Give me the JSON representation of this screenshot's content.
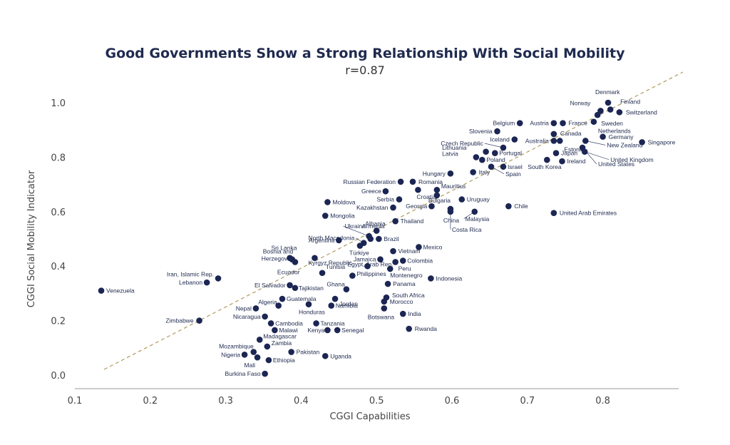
{
  "chart_data": {
    "type": "scatter",
    "title": "Good Governments Show a Strong Relationship With Social Mobility",
    "subtitle": "r=0.87",
    "xlabel": "CGGI Capabilities",
    "ylabel": "CGGI Social Mobility Indicator",
    "xlim": [
      0.1,
      0.9
    ],
    "ylim": [
      0.0,
      1.0
    ],
    "x_ticks": [
      "0.1",
      "0.2",
      "0.3",
      "0.4",
      "0.5",
      "0.6",
      "0.7",
      "0.8"
    ],
    "y_ticks": [
      "0.0",
      "0.2",
      "0.4",
      "0.6",
      "0.8",
      "1.0"
    ],
    "grid": false,
    "trendline": "dashed",
    "colors": {
      "points": "#1c2654",
      "trendline": "#b09a5a",
      "title": "#1f2a4f"
    },
    "points": [
      {
        "label": "Denmark",
        "x": 0.807,
        "y": 1.0
      },
      {
        "label": "Finland",
        "x": 0.81,
        "y": 0.975
      },
      {
        "label": "Norway",
        "x": 0.797,
        "y": 0.97
      },
      {
        "label": "Switzerland",
        "x": 0.822,
        "y": 0.965
      },
      {
        "label": "Sweden",
        "x": 0.793,
        "y": 0.955
      },
      {
        "label": "Netherlands",
        "x": 0.788,
        "y": 0.93
      },
      {
        "label": "Germany",
        "x": 0.8,
        "y": 0.875
      },
      {
        "label": "Singapore",
        "x": 0.852,
        "y": 0.855
      },
      {
        "label": "New Zealand",
        "x": 0.777,
        "y": 0.86
      },
      {
        "label": "United Kingdom",
        "x": 0.776,
        "y": 0.82
      },
      {
        "label": "United States",
        "x": 0.773,
        "y": 0.835
      },
      {
        "label": "Austria",
        "x": 0.735,
        "y": 0.925
      },
      {
        "label": "France",
        "x": 0.747,
        "y": 0.925
      },
      {
        "label": "Canada",
        "x": 0.735,
        "y": 0.885
      },
      {
        "label": "Australia",
        "x": 0.735,
        "y": 0.86
      },
      {
        "label": "Estonia",
        "x": 0.743,
        "y": 0.86
      },
      {
        "label": "Japan",
        "x": 0.738,
        "y": 0.815
      },
      {
        "label": "Ireland",
        "x": 0.746,
        "y": 0.785
      },
      {
        "label": "South Korea",
        "x": 0.726,
        "y": 0.79
      },
      {
        "label": "Belgium",
        "x": 0.69,
        "y": 0.925
      },
      {
        "label": "Slovenia",
        "x": 0.66,
        "y": 0.895
      },
      {
        "label": "Iceland",
        "x": 0.683,
        "y": 0.865
      },
      {
        "label": "Czech Republic",
        "x": 0.668,
        "y": 0.835
      },
      {
        "label": "Lithuania",
        "x": 0.645,
        "y": 0.82
      },
      {
        "label": "Portugal",
        "x": 0.657,
        "y": 0.815
      },
      {
        "label": "Latvia",
        "x": 0.632,
        "y": 0.8
      },
      {
        "label": "Poland",
        "x": 0.64,
        "y": 0.79
      },
      {
        "label": "Israel",
        "x": 0.668,
        "y": 0.765
      },
      {
        "label": "Spain",
        "x": 0.652,
        "y": 0.765
      },
      {
        "label": "Italy",
        "x": 0.628,
        "y": 0.745
      },
      {
        "label": "Hungary",
        "x": 0.598,
        "y": 0.74
      },
      {
        "label": "Russian Federation",
        "x": 0.532,
        "y": 0.71
      },
      {
        "label": "Romania",
        "x": 0.548,
        "y": 0.71
      },
      {
        "label": "Mauritius",
        "x": 0.58,
        "y": 0.68
      },
      {
        "label": "Greece",
        "x": 0.512,
        "y": 0.675
      },
      {
        "label": "Croatia",
        "x": 0.555,
        "y": 0.68
      },
      {
        "label": "Serbia",
        "x": 0.53,
        "y": 0.645
      },
      {
        "label": "Bulgaria",
        "x": 0.58,
        "y": 0.66
      },
      {
        "label": "Uruguay",
        "x": 0.613,
        "y": 0.645
      },
      {
        "label": "Kazakhstan",
        "x": 0.522,
        "y": 0.615
      },
      {
        "label": "Georgia",
        "x": 0.573,
        "y": 0.62
      },
      {
        "label": "China",
        "x": 0.598,
        "y": 0.61
      },
      {
        "label": "Malaysia",
        "x": 0.63,
        "y": 0.6
      },
      {
        "label": "Costa Rica",
        "x": 0.598,
        "y": 0.6
      },
      {
        "label": "Chile",
        "x": 0.675,
        "y": 0.62
      },
      {
        "label": "United Arab Emirates",
        "x": 0.735,
        "y": 0.595
      },
      {
        "label": "Moldova",
        "x": 0.435,
        "y": 0.635
      },
      {
        "label": "Mongolia",
        "x": 0.432,
        "y": 0.585
      },
      {
        "label": "Thailand",
        "x": 0.525,
        "y": 0.565
      },
      {
        "label": "Albania",
        "x": 0.5,
        "y": 0.53
      },
      {
        "label": "Ukraine",
        "x": 0.49,
        "y": 0.51
      },
      {
        "label": "Armenia",
        "x": 0.492,
        "y": 0.5
      },
      {
        "label": "Brazil",
        "x": 0.503,
        "y": 0.5
      },
      {
        "label": "Argentina",
        "x": 0.45,
        "y": 0.495
      },
      {
        "label": "North Macedonia",
        "x": 0.483,
        "y": 0.485
      },
      {
        "label": "Türkiye",
        "x": 0.478,
        "y": 0.475
      },
      {
        "label": "Mexico",
        "x": 0.556,
        "y": 0.47
      },
      {
        "label": "Vietnam",
        "x": 0.522,
        "y": 0.455
      },
      {
        "label": "Sri Lanka",
        "x": 0.385,
        "y": 0.43
      },
      {
        "label": "Bosnia and Herzegovina",
        "x": 0.388,
        "y": 0.425
      },
      {
        "label": "Ecuador",
        "x": 0.392,
        "y": 0.415
      },
      {
        "label": "Jamaica",
        "x": 0.505,
        "y": 0.425
      },
      {
        "label": "Colombia",
        "x": 0.535,
        "y": 0.42
      },
      {
        "label": "Peru",
        "x": 0.525,
        "y": 0.415
      },
      {
        "label": "Kyrgyz Republic",
        "x": 0.418,
        "y": 0.43
      },
      {
        "label": "Philippines",
        "x": 0.488,
        "y": 0.4
      },
      {
        "label": "Montenegro",
        "x": 0.518,
        "y": 0.39
      },
      {
        "label": "Tunisia",
        "x": 0.428,
        "y": 0.375
      },
      {
        "label": "Indonesia",
        "x": 0.572,
        "y": 0.355
      },
      {
        "label": "Iran, Islamic Rep.",
        "x": 0.29,
        "y": 0.355
      },
      {
        "label": "Lebanon",
        "x": 0.275,
        "y": 0.34
      },
      {
        "label": "Egypt, Arab Rep.",
        "x": 0.468,
        "y": 0.365
      },
      {
        "label": "Panama",
        "x": 0.515,
        "y": 0.335
      },
      {
        "label": "El Salvador",
        "x": 0.385,
        "y": 0.33
      },
      {
        "label": "Tajikistan",
        "x": 0.392,
        "y": 0.32
      },
      {
        "label": "Ghana",
        "x": 0.46,
        "y": 0.315
      },
      {
        "label": "Venezuela",
        "x": 0.135,
        "y": 0.31
      },
      {
        "label": "Jordan",
        "x": 0.445,
        "y": 0.28
      },
      {
        "label": "South Africa",
        "x": 0.513,
        "y": 0.285
      },
      {
        "label": "Guatemala",
        "x": 0.375,
        "y": 0.28
      },
      {
        "label": "Morocco",
        "x": 0.51,
        "y": 0.27
      },
      {
        "label": "Algeria",
        "x": 0.37,
        "y": 0.255
      },
      {
        "label": "Namibia",
        "x": 0.44,
        "y": 0.255
      },
      {
        "label": "Nepal",
        "x": 0.34,
        "y": 0.245
      },
      {
        "label": "Honduras",
        "x": 0.41,
        "y": 0.26
      },
      {
        "label": "Botswana",
        "x": 0.51,
        "y": 0.245
      },
      {
        "label": "India",
        "x": 0.535,
        "y": 0.225
      },
      {
        "label": "Nicaragua",
        "x": 0.352,
        "y": 0.215
      },
      {
        "label": "Zimbabwe",
        "x": 0.265,
        "y": 0.2
      },
      {
        "label": "Cambodia",
        "x": 0.36,
        "y": 0.19
      },
      {
        "label": "Tanzania",
        "x": 0.42,
        "y": 0.19
      },
      {
        "label": "Malawi",
        "x": 0.365,
        "y": 0.165
      },
      {
        "label": "Kenya",
        "x": 0.435,
        "y": 0.165
      },
      {
        "label": "Senegal",
        "x": 0.448,
        "y": 0.165
      },
      {
        "label": "Rwanda",
        "x": 0.543,
        "y": 0.17
      },
      {
        "label": "Madagascar",
        "x": 0.345,
        "y": 0.13
      },
      {
        "label": "Zambia",
        "x": 0.355,
        "y": 0.105
      },
      {
        "label": "Mozambique",
        "x": 0.337,
        "y": 0.085
      },
      {
        "label": "Pakistan",
        "x": 0.387,
        "y": 0.085
      },
      {
        "label": "Nigeria",
        "x": 0.325,
        "y": 0.075
      },
      {
        "label": "Mali",
        "x": 0.342,
        "y": 0.065
      },
      {
        "label": "Ethiopia",
        "x": 0.357,
        "y": 0.055
      },
      {
        "label": "Uganda",
        "x": 0.432,
        "y": 0.07
      },
      {
        "label": "Burkina Faso",
        "x": 0.352,
        "y": 0.005
      }
    ]
  }
}
